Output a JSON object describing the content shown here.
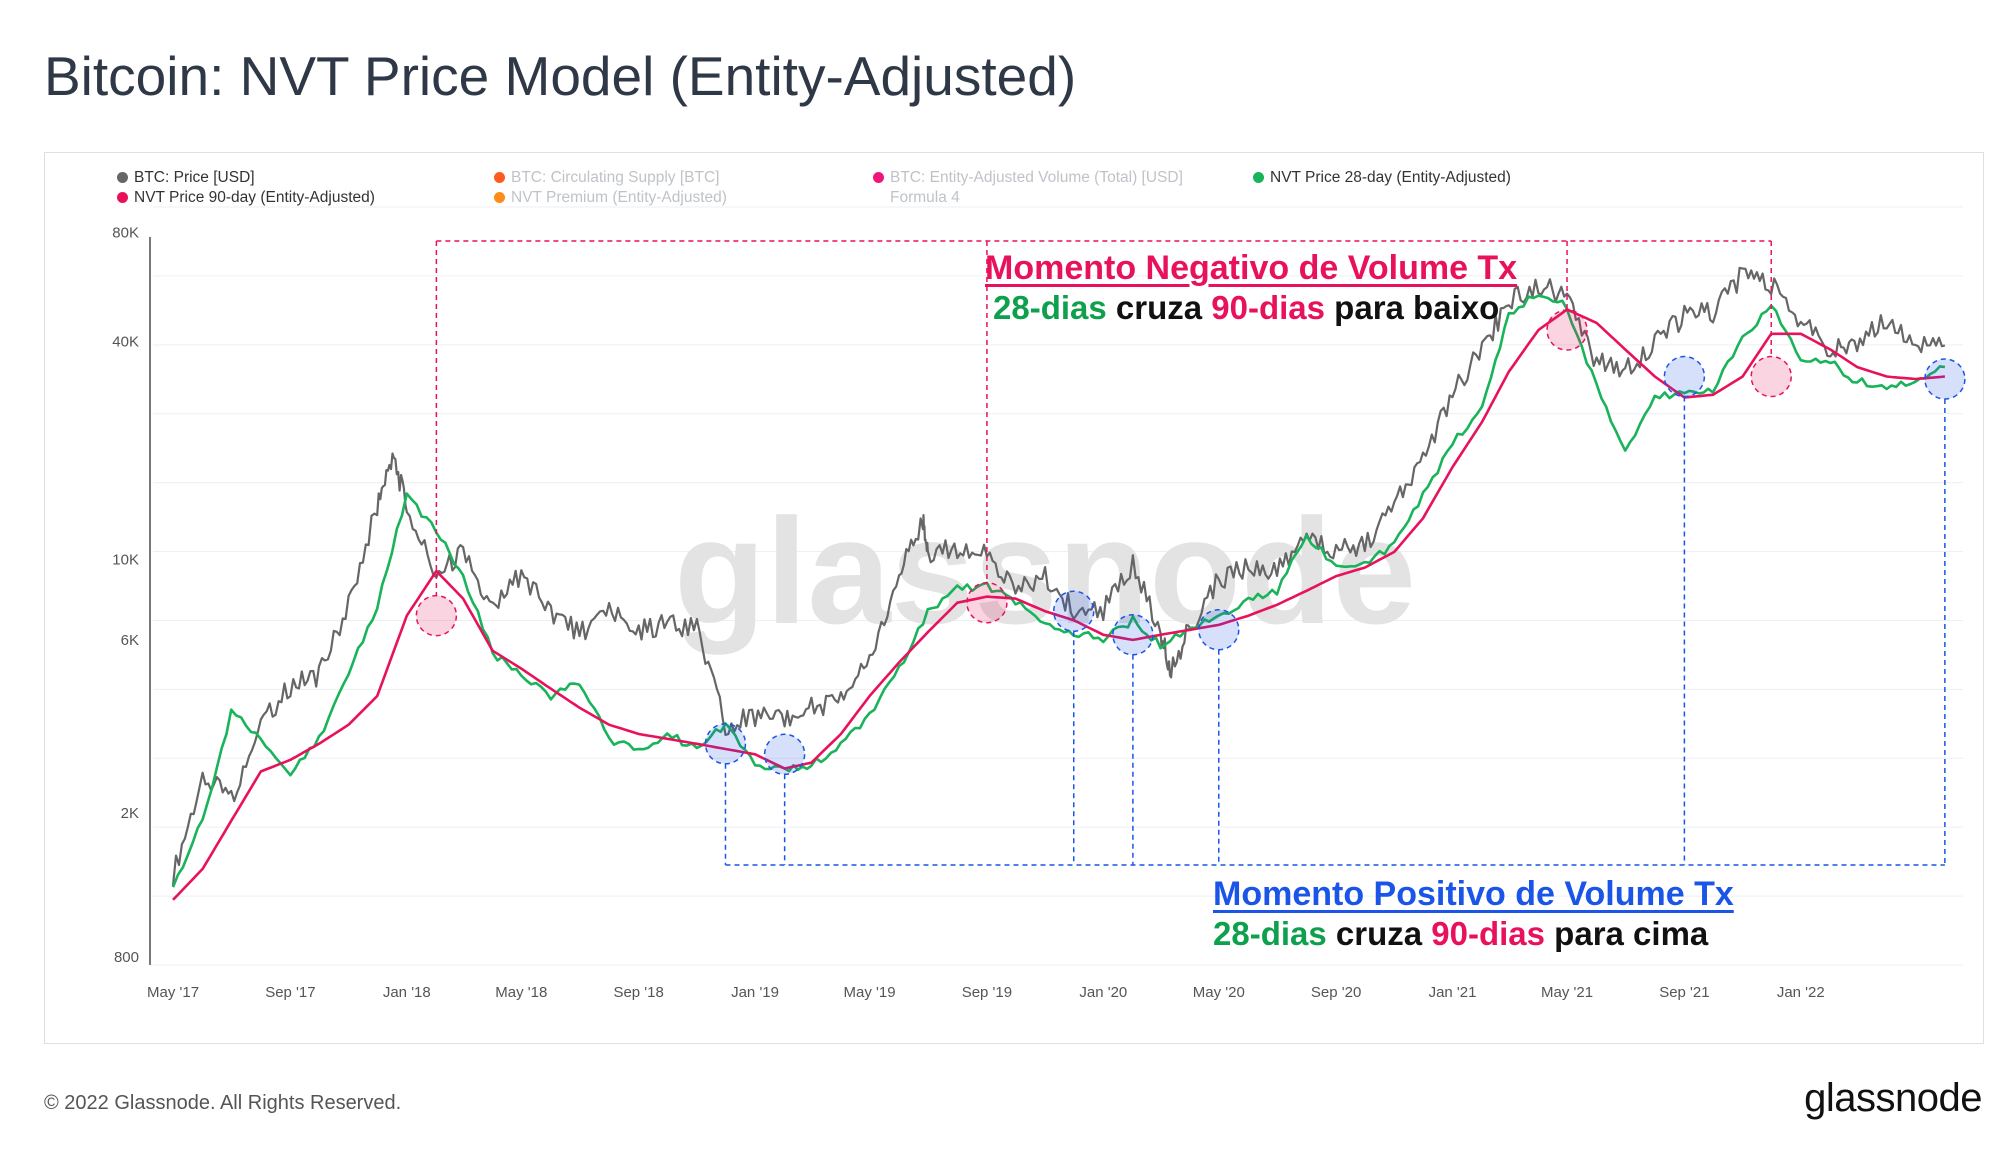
{
  "title": "Bitcoin: NVT Price Model (Entity-Adjusted)",
  "footer": {
    "copyright": "© 2022 Glassnode. All Rights Reserved.",
    "logo": "glassnode"
  },
  "watermark": "glassnode",
  "legend": [
    {
      "label": "BTC: Price [USD]",
      "color": "#666666",
      "active": true
    },
    {
      "label": "BTC: Circulating Supply [BTC]",
      "color": "#ff5a1f",
      "active": false
    },
    {
      "label": "BTC: Entity-Adjusted Volume (Total) [USD]",
      "color": "#f0157a",
      "active": false
    },
    {
      "label": "NVT Price 28-day (Entity-Adjusted)",
      "color": "#19b35a",
      "active": true
    },
    {
      "label": "NVT Price 90-day (Entity-Adjusted)",
      "color": "#e8125c",
      "active": true
    },
    {
      "label": "NVT Premium (Entity-Adjusted)",
      "color": "#ff8c1a",
      "active": false
    },
    {
      "label": "Formula 4",
      "color": "",
      "active": false
    }
  ],
  "annotations": {
    "negative": {
      "title": "Momento Negativo de  Volume Tx",
      "line2": {
        "a": "28-dias",
        "b": " cruza ",
        "c": "90-dias",
        "d": " para baixo"
      }
    },
    "positive": {
      "title": "Momento Positivo de Volume Tx",
      "line2": {
        "a": "28-dias",
        "b": " cruza ",
        "c": "90-dias",
        "d": " para cima"
      }
    }
  },
  "chart_data": {
    "type": "line",
    "y_scale": "log",
    "ylim": [
      800,
      80000
    ],
    "y_ticks": [
      "80K",
      "40K",
      "10K",
      "6K",
      "2K",
      "800"
    ],
    "y_tick_values": [
      80000,
      40000,
      10000,
      6000,
      2000,
      800
    ],
    "x_ticks": [
      "May '17",
      "Sep '17",
      "Jan '18",
      "May '18",
      "Sep '18",
      "Jan '19",
      "May '19",
      "Sep '19",
      "Jan '20",
      "May '20",
      "Sep '20",
      "Jan '21",
      "May '21",
      "Sep '21",
      "Jan '22"
    ],
    "x_range": [
      "2017-05",
      "2022-06"
    ],
    "grid": true,
    "legend_position": "top",
    "series": [
      {
        "name": "BTC: Price [USD]",
        "color": "#666666",
        "points": [
          [
            "2017-05",
            1350
          ],
          [
            "2017-06",
            2500
          ],
          [
            "2017-07",
            2200
          ],
          [
            "2017-08",
            3500
          ],
          [
            "2017-09",
            4500
          ],
          [
            "2017-10",
            4800
          ],
          [
            "2017-11",
            7500
          ],
          [
            "2017-12",
            14000
          ],
          [
            "2017-12-17",
            19500
          ],
          [
            "2018-01",
            14000
          ],
          [
            "2018-02",
            9000
          ],
          [
            "2018-03",
            10500
          ],
          [
            "2018-04",
            7200
          ],
          [
            "2018-05",
            9200
          ],
          [
            "2018-06",
            7200
          ],
          [
            "2018-07",
            6300
          ],
          [
            "2018-08",
            7100
          ],
          [
            "2018-09",
            6400
          ],
          [
            "2018-10",
            6600
          ],
          [
            "2018-11",
            6400
          ],
          [
            "2018-12",
            3500
          ],
          [
            "2019-01",
            3700
          ],
          [
            "2019-02",
            3600
          ],
          [
            "2019-03",
            3900
          ],
          [
            "2019-04",
            4100
          ],
          [
            "2019-05",
            5400
          ],
          [
            "2019-06",
            9000
          ],
          [
            "2019-06-26",
            12900
          ],
          [
            "2019-07",
            10500
          ],
          [
            "2019-08",
            10800
          ],
          [
            "2019-09",
            10200
          ],
          [
            "2019-10",
            8300
          ],
          [
            "2019-11",
            8900
          ],
          [
            "2019-12",
            7300
          ],
          [
            "2020-01",
            7200
          ],
          [
            "2020-02",
            9800
          ],
          [
            "2020-03",
            6200
          ],
          [
            "2020-03-12",
            5000
          ],
          [
            "2020-04",
            6500
          ],
          [
            "2020-05",
            8800
          ],
          [
            "2020-06",
            9500
          ],
          [
            "2020-07",
            9200
          ],
          [
            "2020-08",
            11500
          ],
          [
            "2020-09",
            10500
          ],
          [
            "2020-10",
            11000
          ],
          [
            "2020-11",
            14000
          ],
          [
            "2020-12",
            19000
          ],
          [
            "2021-01",
            29000
          ],
          [
            "2021-02",
            38000
          ],
          [
            "2021-03",
            52000
          ],
          [
            "2021-04",
            58000
          ],
          [
            "2021-05",
            52000
          ],
          [
            "2021-06",
            35000
          ],
          [
            "2021-07",
            33000
          ],
          [
            "2021-08",
            40000
          ],
          [
            "2021-09",
            47000
          ],
          [
            "2021-10",
            48000
          ],
          [
            "2021-11",
            61000
          ],
          [
            "2021-12",
            57000
          ],
          [
            "2022-01",
            46000
          ],
          [
            "2022-02",
            38000
          ],
          [
            "2022-03",
            40000
          ],
          [
            "2022-04",
            46000
          ],
          [
            "2022-05",
            40000
          ],
          [
            "2022-06",
            39000
          ]
        ]
      },
      {
        "name": "NVT Price 28-day (Entity-Adjusted)",
        "color": "#19b35a",
        "points": [
          [
            "2017-05",
            1250
          ],
          [
            "2017-06",
            1900
          ],
          [
            "2017-07",
            3800
          ],
          [
            "2017-08",
            3200
          ],
          [
            "2017-09",
            2600
          ],
          [
            "2017-10",
            3200
          ],
          [
            "2017-11",
            4800
          ],
          [
            "2017-12",
            7500
          ],
          [
            "2018-01",
            15000
          ],
          [
            "2018-02",
            12000
          ],
          [
            "2018-03",
            9000
          ],
          [
            "2018-04",
            5500
          ],
          [
            "2018-05",
            4800
          ],
          [
            "2018-06",
            4200
          ],
          [
            "2018-07",
            4600
          ],
          [
            "2018-08",
            3200
          ],
          [
            "2018-09",
            2950
          ],
          [
            "2018-10",
            3300
          ],
          [
            "2018-11",
            3000
          ],
          [
            "2018-12",
            3500
          ],
          [
            "2019-01",
            2700
          ],
          [
            "2019-02",
            2650
          ],
          [
            "2019-03",
            2700
          ],
          [
            "2019-04",
            3100
          ],
          [
            "2019-05",
            3700
          ],
          [
            "2019-06",
            5000
          ],
          [
            "2019-07",
            7200
          ],
          [
            "2019-08",
            8300
          ],
          [
            "2019-09",
            8500
          ],
          [
            "2019-10",
            7600
          ],
          [
            "2019-11",
            6700
          ],
          [
            "2019-12",
            6300
          ],
          [
            "2020-01",
            6000
          ],
          [
            "2020-02",
            6800
          ],
          [
            "2020-03",
            5800
          ],
          [
            "2020-04",
            6400
          ],
          [
            "2020-05",
            7000
          ],
          [
            "2020-06",
            7800
          ],
          [
            "2020-07",
            8200
          ],
          [
            "2020-08",
            11600
          ],
          [
            "2020-09",
            9600
          ],
          [
            "2020-10",
            9700
          ],
          [
            "2020-11",
            11000
          ],
          [
            "2020-12",
            15000
          ],
          [
            "2021-01",
            21000
          ],
          [
            "2021-02",
            26000
          ],
          [
            "2021-03",
            48000
          ],
          [
            "2021-04",
            54000
          ],
          [
            "2021-05",
            50000
          ],
          [
            "2021-06",
            30000
          ],
          [
            "2021-07",
            20000
          ],
          [
            "2021-08",
            28000
          ],
          [
            "2021-09",
            29000
          ],
          [
            "2021-10",
            29000
          ],
          [
            "2021-11",
            41000
          ],
          [
            "2021-12",
            50000
          ],
          [
            "2022-01",
            36000
          ],
          [
            "2022-02",
            35000
          ],
          [
            "2022-03",
            31000
          ],
          [
            "2022-04",
            30000
          ],
          [
            "2022-05",
            31000
          ],
          [
            "2022-06",
            34000
          ]
        ]
      },
      {
        "name": "NVT Price 90-day (Entity-Adjusted)",
        "color": "#e8125c",
        "points": [
          [
            "2017-05",
            1150
          ],
          [
            "2017-06",
            1400
          ],
          [
            "2017-07",
            1900
          ],
          [
            "2017-08",
            2600
          ],
          [
            "2017-09",
            2800
          ],
          [
            "2017-10",
            3100
          ],
          [
            "2017-11",
            3500
          ],
          [
            "2017-12",
            4200
          ],
          [
            "2018-01",
            7000
          ],
          [
            "2018-02",
            9300
          ],
          [
            "2018-03",
            7800
          ],
          [
            "2018-04",
            5600
          ],
          [
            "2018-05",
            5000
          ],
          [
            "2018-06",
            4400
          ],
          [
            "2018-07",
            3900
          ],
          [
            "2018-08",
            3500
          ],
          [
            "2018-09",
            3300
          ],
          [
            "2018-10",
            3200
          ],
          [
            "2018-11",
            3100
          ],
          [
            "2018-12",
            3000
          ],
          [
            "2019-01",
            2900
          ],
          [
            "2019-02",
            2650
          ],
          [
            "2019-03",
            2750
          ],
          [
            "2019-04",
            3300
          ],
          [
            "2019-05",
            4200
          ],
          [
            "2019-06",
            5200
          ],
          [
            "2019-07",
            6300
          ],
          [
            "2019-08",
            7600
          ],
          [
            "2019-09",
            7900
          ],
          [
            "2019-10",
            7800
          ],
          [
            "2019-11",
            7200
          ],
          [
            "2019-12",
            6800
          ],
          [
            "2020-01",
            6200
          ],
          [
            "2020-02",
            6000
          ],
          [
            "2020-03",
            6200
          ],
          [
            "2020-04",
            6400
          ],
          [
            "2020-05",
            6600
          ],
          [
            "2020-06",
            7000
          ],
          [
            "2020-07",
            7500
          ],
          [
            "2020-08",
            8200
          ],
          [
            "2020-09",
            9000
          ],
          [
            "2020-10",
            9500
          ],
          [
            "2020-11",
            10500
          ],
          [
            "2020-12",
            13000
          ],
          [
            "2021-01",
            18000
          ],
          [
            "2021-02",
            24000
          ],
          [
            "2021-03",
            33000
          ],
          [
            "2021-04",
            43000
          ],
          [
            "2021-05",
            49000
          ],
          [
            "2021-06",
            45000
          ],
          [
            "2021-07",
            38000
          ],
          [
            "2021-08",
            32000
          ],
          [
            "2021-09",
            28000
          ],
          [
            "2021-10",
            28500
          ],
          [
            "2021-11",
            32000
          ],
          [
            "2021-12",
            42000
          ],
          [
            "2022-01",
            42000
          ],
          [
            "2022-02",
            38000
          ],
          [
            "2022-03",
            34000
          ],
          [
            "2022-04",
            32000
          ],
          [
            "2022-05",
            31500
          ],
          [
            "2022-06",
            32000
          ]
        ]
      }
    ],
    "crossovers": {
      "negative": [
        "2018-02",
        "2019-09",
        "2021-05",
        "2021-12"
      ],
      "positive": [
        "2018-12",
        "2019-02",
        "2019-12",
        "2020-02",
        "2020-05",
        "2021-09",
        "2022-06"
      ]
    }
  }
}
